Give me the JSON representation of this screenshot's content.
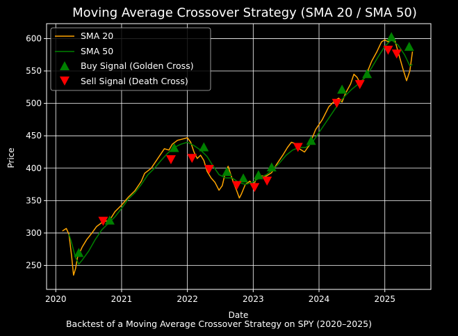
{
  "chart_data": {
    "type": "line",
    "title": "Moving Average Crossover Strategy (SMA 20 / SMA 50)",
    "xlabel": "Date",
    "ylabel": "Price",
    "caption": "Backtest of a Moving Average Crossover Strategy on SPY (2020–2025)",
    "xlim": [
      2019.86,
      2025.7
    ],
    "ylim": [
      213,
      623
    ],
    "x_ticks": [
      2020,
      2021,
      2022,
      2023,
      2024,
      2025
    ],
    "x_tick_labels": [
      "2020",
      "2021",
      "2022",
      "2023",
      "2024",
      "2025"
    ],
    "y_ticks": [
      250,
      300,
      350,
      400,
      450,
      500,
      550,
      600
    ],
    "y_tick_labels": [
      "250",
      "300",
      "350",
      "400",
      "450",
      "500",
      "550",
      "600"
    ],
    "grid": true,
    "legend_position": "top-left",
    "colors": {
      "background": "#000000",
      "sma20": "#ffa500",
      "sma50": "#008000",
      "buy": "#008000",
      "sell": "#ff0000",
      "grid": "#ffffff"
    },
    "series": [
      {
        "name": "SMA 20",
        "key": "sma20",
        "points": [
          [
            2020.1,
            303
          ],
          [
            2020.16,
            307
          ],
          [
            2020.2,
            298
          ],
          [
            2020.24,
            265
          ],
          [
            2020.27,
            235
          ],
          [
            2020.3,
            245
          ],
          [
            2020.33,
            262
          ],
          [
            2020.4,
            278
          ],
          [
            2020.47,
            290
          ],
          [
            2020.55,
            300
          ],
          [
            2020.62,
            310
          ],
          [
            2020.7,
            316
          ],
          [
            2020.75,
            318
          ],
          [
            2020.82,
            320
          ],
          [
            2020.9,
            333
          ],
          [
            2021.0,
            343
          ],
          [
            2021.1,
            355
          ],
          [
            2021.2,
            365
          ],
          [
            2021.3,
            380
          ],
          [
            2021.35,
            392
          ],
          [
            2021.45,
            400
          ],
          [
            2021.55,
            415
          ],
          [
            2021.65,
            430
          ],
          [
            2021.72,
            428
          ],
          [
            2021.77,
            437
          ],
          [
            2021.85,
            443
          ],
          [
            2021.93,
            445
          ],
          [
            2022.0,
            447
          ],
          [
            2022.05,
            440
          ],
          [
            2022.1,
            425
          ],
          [
            2022.15,
            415
          ],
          [
            2022.2,
            420
          ],
          [
            2022.25,
            412
          ],
          [
            2022.3,
            395
          ],
          [
            2022.36,
            385
          ],
          [
            2022.42,
            378
          ],
          [
            2022.48,
            366
          ],
          [
            2022.53,
            373
          ],
          [
            2022.58,
            395
          ],
          [
            2022.62,
            403
          ],
          [
            2022.66,
            390
          ],
          [
            2022.7,
            378
          ],
          [
            2022.75,
            365
          ],
          [
            2022.79,
            354
          ],
          [
            2022.82,
            360
          ],
          [
            2022.88,
            375
          ],
          [
            2022.95,
            380
          ],
          [
            2023.0,
            372
          ],
          [
            2023.05,
            385
          ],
          [
            2023.1,
            388
          ],
          [
            2023.2,
            388
          ],
          [
            2023.28,
            393
          ],
          [
            2023.35,
            405
          ],
          [
            2023.45,
            420
          ],
          [
            2023.52,
            432
          ],
          [
            2023.58,
            440
          ],
          [
            2023.64,
            438
          ],
          [
            2023.7,
            430
          ],
          [
            2023.78,
            425
          ],
          [
            2023.85,
            435
          ],
          [
            2023.95,
            460
          ],
          [
            2024.05,
            475
          ],
          [
            2024.15,
            495
          ],
          [
            2024.25,
            505
          ],
          [
            2024.3,
            508
          ],
          [
            2024.35,
            502
          ],
          [
            2024.4,
            515
          ],
          [
            2024.48,
            530
          ],
          [
            2024.53,
            545
          ],
          [
            2024.58,
            540
          ],
          [
            2024.62,
            532
          ],
          [
            2024.7,
            540
          ],
          [
            2024.8,
            565
          ],
          [
            2024.88,
            580
          ],
          [
            2024.95,
            595
          ],
          [
            2025.0,
            598
          ],
          [
            2025.05,
            595
          ],
          [
            2025.1,
            600
          ],
          [
            2025.15,
            598
          ],
          [
            2025.2,
            580
          ],
          [
            2025.27,
            555
          ],
          [
            2025.33,
            535
          ],
          [
            2025.38,
            550
          ],
          [
            2025.42,
            580
          ]
        ]
      },
      {
        "name": "SMA 50",
        "key": "sma50",
        "points": [
          [
            2020.2,
            298
          ],
          [
            2020.24,
            285
          ],
          [
            2020.3,
            262
          ],
          [
            2020.35,
            252
          ],
          [
            2020.4,
            258
          ],
          [
            2020.5,
            272
          ],
          [
            2020.6,
            290
          ],
          [
            2020.7,
            305
          ],
          [
            2020.8,
            315
          ],
          [
            2020.9,
            325
          ],
          [
            2021.0,
            338
          ],
          [
            2021.1,
            352
          ],
          [
            2021.2,
            362
          ],
          [
            2021.3,
            375
          ],
          [
            2021.4,
            390
          ],
          [
            2021.5,
            400
          ],
          [
            2021.6,
            412
          ],
          [
            2021.7,
            423
          ],
          [
            2021.8,
            432
          ],
          [
            2021.9,
            437
          ],
          [
            2022.0,
            440
          ],
          [
            2022.1,
            435
          ],
          [
            2022.2,
            428
          ],
          [
            2022.3,
            418
          ],
          [
            2022.38,
            405
          ],
          [
            2022.48,
            390
          ],
          [
            2022.58,
            385
          ],
          [
            2022.68,
            385
          ],
          [
            2022.78,
            378
          ],
          [
            2022.88,
            375
          ],
          [
            2022.98,
            378
          ],
          [
            2023.1,
            385
          ],
          [
            2023.2,
            390
          ],
          [
            2023.3,
            398
          ],
          [
            2023.4,
            408
          ],
          [
            2023.5,
            420
          ],
          [
            2023.6,
            428
          ],
          [
            2023.7,
            432
          ],
          [
            2023.8,
            432
          ],
          [
            2023.9,
            440
          ],
          [
            2024.0,
            455
          ],
          [
            2024.1,
            470
          ],
          [
            2024.2,
            485
          ],
          [
            2024.3,
            500
          ],
          [
            2024.4,
            512
          ],
          [
            2024.5,
            522
          ],
          [
            2024.6,
            530
          ],
          [
            2024.7,
            540
          ],
          [
            2024.8,
            555
          ],
          [
            2024.9,
            572
          ],
          [
            2025.0,
            588
          ],
          [
            2025.1,
            598
          ],
          [
            2025.2,
            590
          ],
          [
            2025.3,
            575
          ],
          [
            2025.38,
            558
          ],
          [
            2025.42,
            560
          ]
        ]
      }
    ],
    "buy_signals": {
      "name": "Buy Signal (Golden Cross)",
      "points": [
        [
          2020.35,
          270
        ],
        [
          2020.82,
          320
        ],
        [
          2021.8,
          432
        ],
        [
          2022.25,
          433
        ],
        [
          2022.6,
          395
        ],
        [
          2022.85,
          385
        ],
        [
          2023.08,
          390
        ],
        [
          2023.28,
          402
        ],
        [
          2023.88,
          443
        ],
        [
          2024.35,
          522
        ],
        [
          2024.73,
          546
        ],
        [
          2025.1,
          603
        ],
        [
          2025.37,
          588
        ]
      ]
    },
    "sell_signals": {
      "name": "Sell Signal (Death Cross)",
      "points": [
        [
          2020.72,
          318
        ],
        [
          2021.75,
          413
        ],
        [
          2022.07,
          415
        ],
        [
          2022.33,
          398
        ],
        [
          2022.75,
          373
        ],
        [
          2023.02,
          370
        ],
        [
          2023.21,
          380
        ],
        [
          2023.68,
          432
        ],
        [
          2024.27,
          500
        ],
        [
          2024.62,
          529
        ],
        [
          2025.05,
          582
        ],
        [
          2025.18,
          576
        ]
      ]
    }
  }
}
